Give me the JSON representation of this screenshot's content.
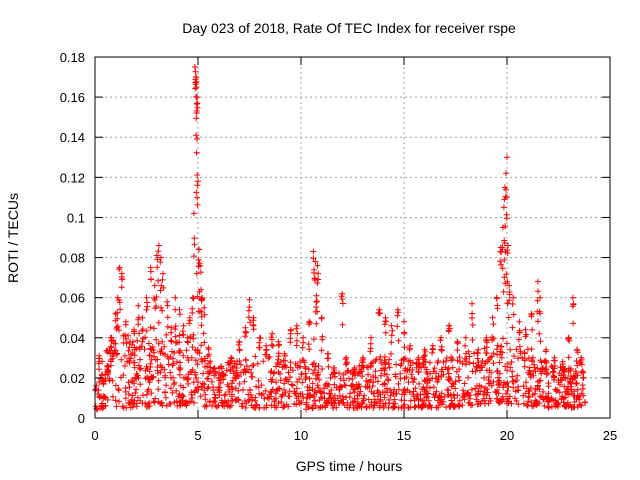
{
  "chart_data": {
    "type": "scatter",
    "title": "Day 023 of 2018, Rate Of TEC Index for receiver rspe",
    "xlabel": "GPS time / hours",
    "ylabel": "ROTI / TECUs",
    "xlim": [
      0,
      25
    ],
    "ylim": [
      0,
      0.18
    ],
    "xticks": [
      0,
      5,
      10,
      15,
      20,
      25
    ],
    "xtick_labels": [
      "0",
      "5",
      "10",
      "15",
      "20",
      "25"
    ],
    "yticks": [
      0,
      0.02,
      0.04,
      0.06,
      0.08,
      0.1,
      0.12,
      0.14,
      0.16,
      0.18
    ],
    "ytick_labels": [
      "0",
      "0.02",
      "0.04",
      "0.06",
      "0.08",
      "0.1",
      "0.12",
      "0.14",
      "0.16",
      "0.18"
    ],
    "grid": true,
    "marker": "+",
    "marker_color": "#ff0000",
    "series": [
      {
        "name": "ROTI",
        "points": [
          [
            0.2,
            0.031
          ],
          [
            0.4,
            0.018
          ],
          [
            0.6,
            0.026
          ],
          [
            0.8,
            0.04
          ],
          [
            1.0,
            0.052
          ],
          [
            1.1,
            0.06
          ],
          [
            1.2,
            0.075
          ],
          [
            1.3,
            0.072
          ],
          [
            1.5,
            0.048
          ],
          [
            1.7,
            0.038
          ],
          [
            1.9,
            0.044
          ],
          [
            2.1,
            0.056
          ],
          [
            2.3,
            0.05
          ],
          [
            2.5,
            0.06
          ],
          [
            2.7,
            0.075
          ],
          [
            2.9,
            0.066
          ],
          [
            3.0,
            0.081
          ],
          [
            3.1,
            0.086
          ],
          [
            3.2,
            0.08
          ],
          [
            3.3,
            0.072
          ],
          [
            3.5,
            0.058
          ],
          [
            3.7,
            0.045
          ],
          [
            3.9,
            0.06
          ],
          [
            4.1,
            0.054
          ],
          [
            4.3,
            0.046
          ],
          [
            4.5,
            0.04
          ],
          [
            4.6,
            0.05
          ],
          [
            4.75,
            0.06
          ],
          [
            4.8,
            0.102
          ],
          [
            4.85,
            0.175
          ],
          [
            4.9,
            0.17
          ],
          [
            4.92,
            0.165
          ],
          [
            4.95,
            0.16
          ],
          [
            4.97,
            0.157
          ],
          [
            5.0,
            0.118
          ],
          [
            5.05,
            0.084
          ],
          [
            5.1,
            0.076
          ],
          [
            5.15,
            0.064
          ],
          [
            5.2,
            0.06
          ],
          [
            5.3,
            0.055
          ],
          [
            5.5,
            0.035
          ],
          [
            5.8,
            0.025
          ],
          [
            6.2,
            0.022
          ],
          [
            6.6,
            0.03
          ],
          [
            7.0,
            0.038
          ],
          [
            7.3,
            0.045
          ],
          [
            7.5,
            0.059
          ],
          [
            7.7,
            0.05
          ],
          [
            8.0,
            0.04
          ],
          [
            8.3,
            0.036
          ],
          [
            8.6,
            0.042
          ],
          [
            8.9,
            0.038
          ],
          [
            9.2,
            0.032
          ],
          [
            9.5,
            0.044
          ],
          [
            9.8,
            0.046
          ],
          [
            10.1,
            0.04
          ],
          [
            10.4,
            0.048
          ],
          [
            10.6,
            0.083
          ],
          [
            10.7,
            0.078
          ],
          [
            10.8,
            0.076
          ],
          [
            10.75,
            0.061
          ],
          [
            11.0,
            0.05
          ],
          [
            11.3,
            0.032
          ],
          [
            11.6,
            0.025
          ],
          [
            12.0,
            0.062
          ],
          [
            12.2,
            0.03
          ],
          [
            12.6,
            0.025
          ],
          [
            13.0,
            0.03
          ],
          [
            13.4,
            0.04
          ],
          [
            13.8,
            0.054
          ],
          [
            14.1,
            0.05
          ],
          [
            14.4,
            0.046
          ],
          [
            14.7,
            0.054
          ],
          [
            15.0,
            0.048
          ],
          [
            15.3,
            0.036
          ],
          [
            15.7,
            0.03
          ],
          [
            16.0,
            0.034
          ],
          [
            16.4,
            0.036
          ],
          [
            16.8,
            0.04
          ],
          [
            17.2,
            0.046
          ],
          [
            17.6,
            0.038
          ],
          [
            18.0,
            0.04
          ],
          [
            18.3,
            0.057
          ],
          [
            18.6,
            0.034
          ],
          [
            19.0,
            0.04
          ],
          [
            19.3,
            0.05
          ],
          [
            19.5,
            0.06
          ],
          [
            19.7,
            0.085
          ],
          [
            19.8,
            0.095
          ],
          [
            19.85,
            0.105
          ],
          [
            19.9,
            0.115
          ],
          [
            19.95,
            0.122
          ],
          [
            20.0,
            0.13
          ],
          [
            20.05,
            0.086
          ],
          [
            20.1,
            0.066
          ],
          [
            20.3,
            0.06
          ],
          [
            20.6,
            0.048
          ],
          [
            20.9,
            0.044
          ],
          [
            21.2,
            0.052
          ],
          [
            21.5,
            0.068
          ],
          [
            21.6,
            0.06
          ],
          [
            21.9,
            0.034
          ],
          [
            22.3,
            0.03
          ],
          [
            22.7,
            0.028
          ],
          [
            23.0,
            0.04
          ],
          [
            23.2,
            0.06
          ],
          [
            23.4,
            0.034
          ],
          [
            23.6,
            0.03
          ],
          [
            23.7,
            0.02
          ]
        ]
      }
    ],
    "dense_band": {
      "note": "thousands of 1-minute ROTI samples between ~0.003 and ~0.035 TECU across 0-23.8 h",
      "x_range": [
        0.0,
        23.8
      ],
      "envelope": [
        [
          0.0,
          0.004,
          0.033
        ],
        [
          1.0,
          0.005,
          0.045
        ],
        [
          2.0,
          0.005,
          0.042
        ],
        [
          3.0,
          0.006,
          0.04
        ],
        [
          4.0,
          0.006,
          0.038
        ],
        [
          5.0,
          0.006,
          0.035
        ],
        [
          6.0,
          0.005,
          0.026
        ],
        [
          7.0,
          0.005,
          0.03
        ],
        [
          8.0,
          0.005,
          0.032
        ],
        [
          9.0,
          0.005,
          0.03
        ],
        [
          10.0,
          0.004,
          0.03
        ],
        [
          11.0,
          0.005,
          0.026
        ],
        [
          12.0,
          0.005,
          0.022
        ],
        [
          13.0,
          0.005,
          0.028
        ],
        [
          14.0,
          0.005,
          0.032
        ],
        [
          15.0,
          0.005,
          0.03
        ],
        [
          16.0,
          0.005,
          0.03
        ],
        [
          17.0,
          0.005,
          0.03
        ],
        [
          18.0,
          0.006,
          0.033
        ],
        [
          19.0,
          0.007,
          0.035
        ],
        [
          20.0,
          0.007,
          0.038
        ],
        [
          21.0,
          0.006,
          0.036
        ],
        [
          22.0,
          0.005,
          0.028
        ],
        [
          23.0,
          0.005,
          0.025
        ],
        [
          23.8,
          0.006,
          0.03
        ]
      ],
      "count": 1400
    }
  }
}
